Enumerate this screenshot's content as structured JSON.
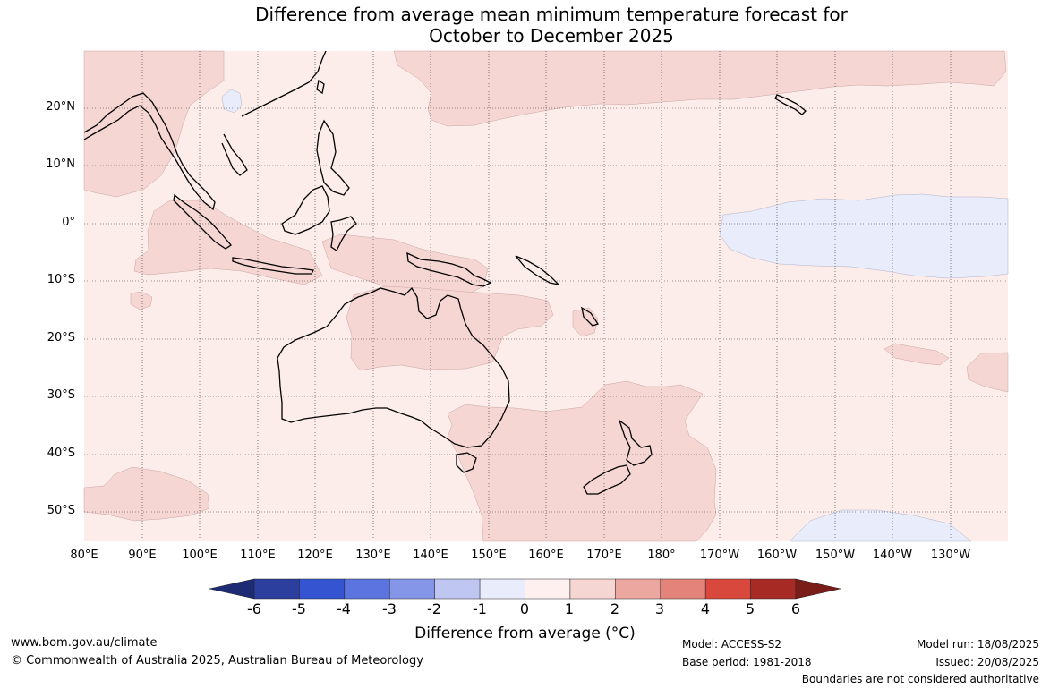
{
  "title": {
    "line1": "Difference from average mean minimum temperature forecast for",
    "line2": "October to December 2025"
  },
  "map": {
    "lat_labels": [
      "20°N",
      "10°N",
      "0°",
      "10°S",
      "20°S",
      "30°S",
      "40°S",
      "50°S"
    ],
    "lon_labels": [
      "80°E",
      "90°E",
      "100°E",
      "110°E",
      "120°E",
      "130°E",
      "140°E",
      "150°E",
      "160°E",
      "170°E",
      "180°",
      "170°W",
      "160°W",
      "150°W",
      "140°W",
      "130°W"
    ]
  },
  "colorbar": {
    "ticks": [
      "-6",
      "-5",
      "-4",
      "-3",
      "-2",
      "-1",
      "0",
      "1",
      "2",
      "3",
      "4",
      "5",
      "6"
    ],
    "colors": [
      "#2c3e9e",
      "#3454d1",
      "#5b74e0",
      "#8596e8",
      "#bfc6f2",
      "#e9ecfb",
      "#fdf0ee",
      "#f6d6d3",
      "#eda7a1",
      "#e4837a",
      "#d9483d",
      "#a82a25"
    ],
    "low_extend_color": "#1c2b73",
    "high_extend_color": "#7a1d19",
    "label": "Difference from average (°C)"
  },
  "footer": {
    "website": "www.bom.gov.au/climate",
    "copyright": "© Commonwealth of Australia 2025, Australian Bureau of Meteorology",
    "model": "Model: ACCESS-S2",
    "base_period": "Base period: 1981-2018",
    "model_run": "Model run: 18/08/2025",
    "issued": "Issued: 20/08/2025",
    "disclaimer": "Boundaries are not considered authoritative"
  }
}
